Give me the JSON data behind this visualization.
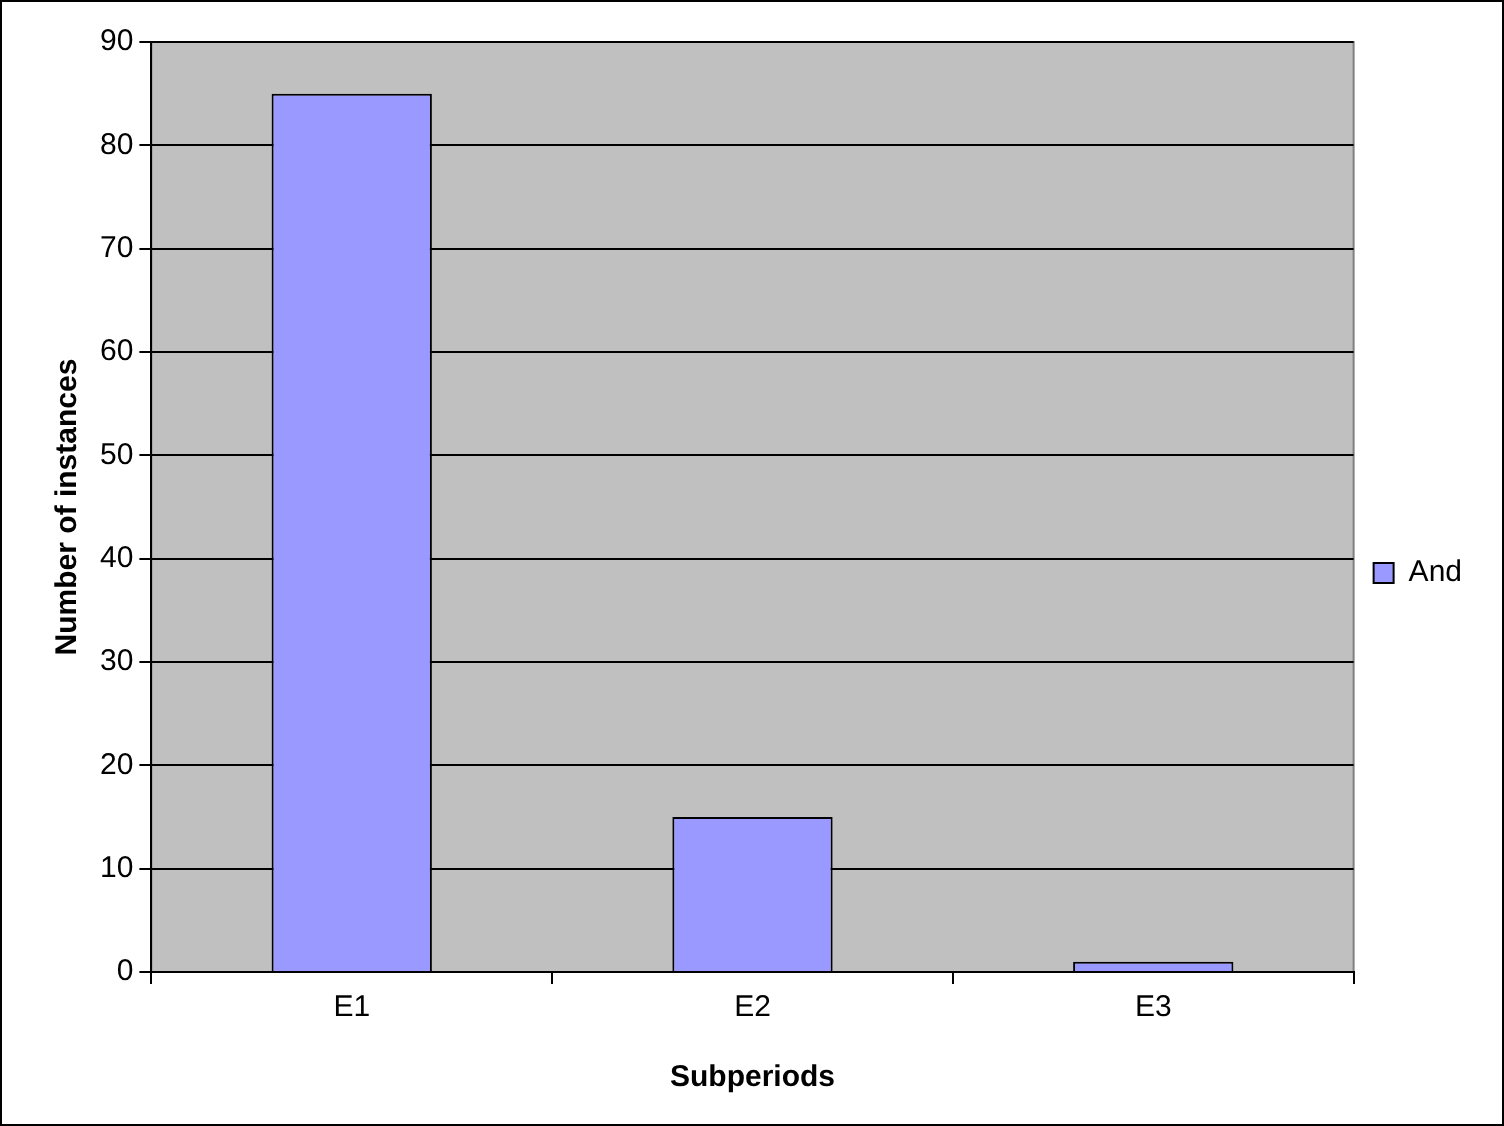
{
  "chart_data": {
    "type": "bar",
    "xlabel": "Subperiods",
    "ylabel": "Number of instances",
    "categories": [
      "E1",
      "E2",
      "E3"
    ],
    "series": [
      {
        "name": "And",
        "color": "#9999ff",
        "values": [
          85,
          15,
          1
        ]
      }
    ],
    "ylim": [
      0,
      90
    ],
    "yticks": [
      0,
      10,
      20,
      30,
      40,
      50,
      60,
      70,
      80,
      90
    ],
    "grid": "y",
    "legend": "right"
  }
}
